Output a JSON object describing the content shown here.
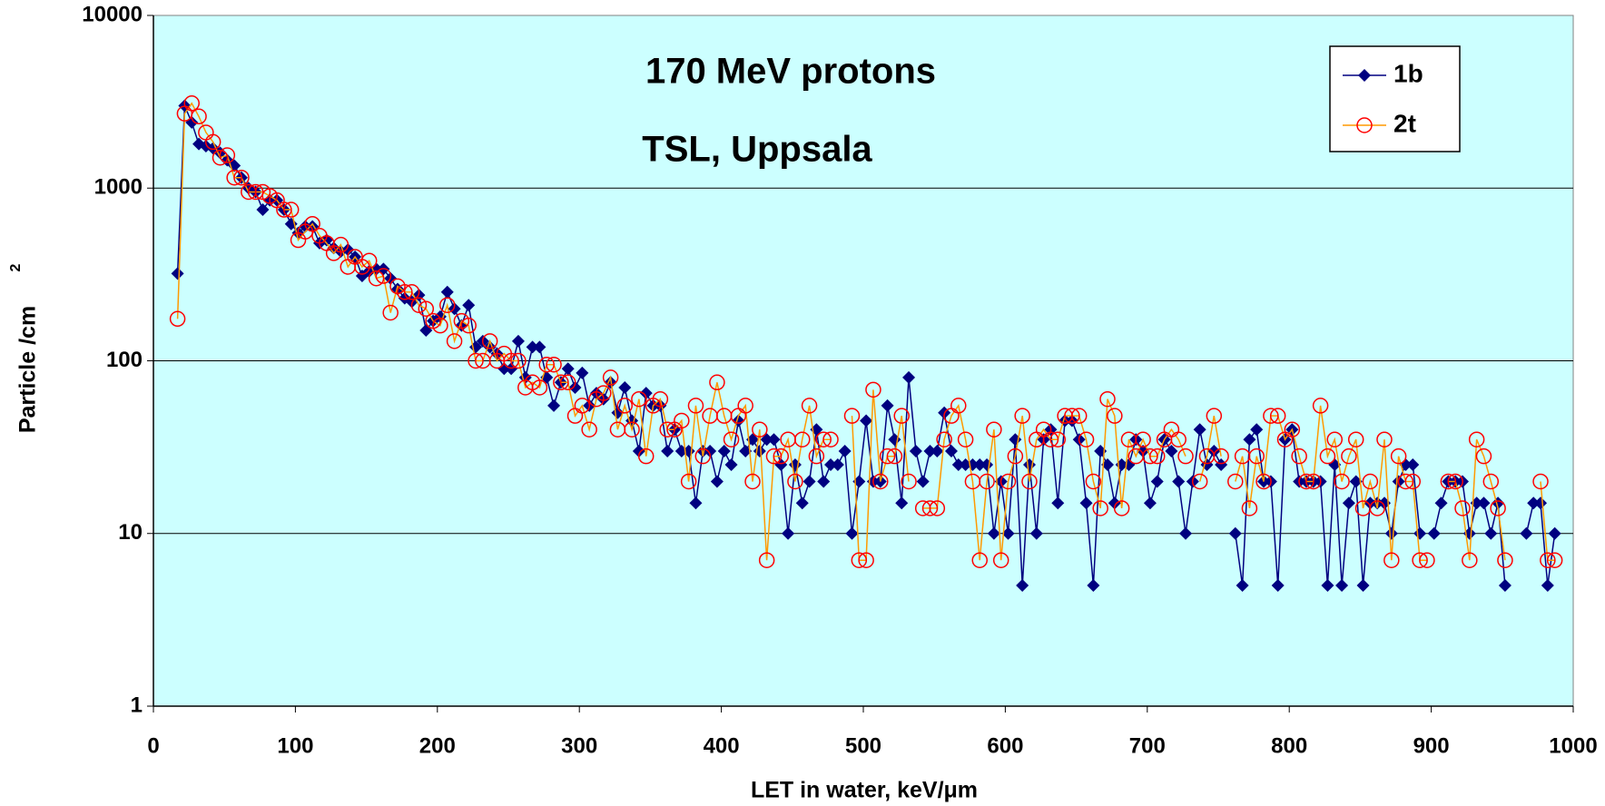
{
  "chart_data": {
    "type": "line",
    "title": "170 MeV protons",
    "subtitle": "TSL, Uppsala",
    "x_label": "LET in water, keV/μm",
    "y_label": "Particle /cm",
    "y_label_superscript": "2",
    "xlim": [
      0,
      1000
    ],
    "xticks": [
      0,
      100,
      200,
      300,
      400,
      500,
      600,
      700,
      800,
      900,
      1000
    ],
    "ylim": [
      1,
      10000
    ],
    "yticks": [
      1,
      10,
      100,
      1000,
      10000
    ],
    "y_scale": "log",
    "grid": true,
    "legend_position": "upper right",
    "background": "#ccffff",
    "x": [
      17,
      22,
      27,
      32,
      37,
      42,
      47,
      52,
      57,
      62,
      67,
      72,
      77,
      82,
      87,
      92,
      97,
      102,
      107,
      112,
      117,
      122,
      127,
      132,
      137,
      142,
      147,
      152,
      157,
      162,
      167,
      172,
      177,
      182,
      187,
      192,
      197,
      202,
      207,
      212,
      217,
      222,
      227,
      232,
      237,
      242,
      247,
      252,
      257,
      262,
      267,
      272,
      277,
      282,
      287,
      292,
      297,
      302,
      307,
      312,
      317,
      322,
      327,
      332,
      337,
      342,
      347,
      352,
      357,
      362,
      367,
      372,
      377,
      382,
      387,
      392,
      397,
      402,
      407,
      412,
      417,
      422,
      427,
      432,
      437,
      442,
      447,
      452,
      457,
      462,
      467,
      472,
      477,
      482,
      487,
      492,
      497,
      502,
      507,
      512,
      517,
      522,
      527,
      532,
      537,
      542,
      547,
      552,
      557,
      562,
      567,
      572,
      577,
      582,
      587,
      592,
      597,
      602,
      607,
      612,
      617,
      622,
      627,
      632,
      637,
      642,
      647,
      652,
      657,
      662,
      667,
      672,
      677,
      682,
      687,
      692,
      697,
      702,
      707,
      712,
      717,
      722,
      727,
      732,
      737,
      742,
      747,
      752,
      757,
      762,
      767,
      772,
      777,
      782,
      787,
      792,
      797,
      802,
      807,
      812,
      817,
      822,
      827,
      832,
      837,
      842,
      847,
      852,
      857,
      862,
      867,
      872,
      877,
      882,
      887,
      892,
      897,
      902,
      907,
      912,
      917,
      922,
      927,
      932,
      937,
      942,
      947,
      952,
      957,
      962,
      967,
      972,
      977,
      982,
      987
    ],
    "series": [
      {
        "name": "1b",
        "color": "#000080",
        "marker": "diamond",
        "values": [
          320,
          3000,
          2400,
          1800,
          1750,
          1700,
          1600,
          1450,
          1350,
          1150,
          1000,
          950,
          750,
          850,
          850,
          750,
          620,
          550,
          600,
          600,
          480,
          500,
          450,
          430,
          440,
          400,
          310,
          330,
          340,
          340,
          300,
          260,
          230,
          220,
          240,
          150,
          170,
          180,
          250,
          200,
          160,
          210,
          120,
          130,
          120,
          110,
          90,
          90,
          130,
          80,
          120,
          120,
          80,
          55,
          75,
          90,
          70,
          85,
          55,
          65,
          60,
          75,
          50,
          70,
          45,
          30,
          65,
          55,
          55,
          30,
          40,
          30,
          30,
          15,
          30,
          30,
          20,
          30,
          25,
          45,
          30,
          35,
          30,
          35,
          35,
          25,
          10,
          25,
          15,
          20,
          40,
          20,
          25,
          25,
          30,
          10,
          20,
          45,
          20,
          20,
          55,
          35,
          15,
          80,
          30,
          20,
          30,
          30,
          50,
          30,
          25,
          25,
          25,
          25,
          25,
          10,
          20,
          10,
          35,
          5,
          25,
          10,
          35,
          40,
          15,
          45,
          45,
          35,
          15,
          5,
          30,
          25,
          15,
          25,
          25,
          35,
          30,
          15,
          20,
          35,
          30,
          20,
          10,
          20,
          40,
          25,
          30,
          25,
          null,
          10,
          5,
          35,
          40,
          20,
          20,
          5,
          35,
          40,
          20,
          20,
          20,
          20,
          5,
          25,
          5,
          15,
          20,
          5,
          15,
          15,
          15,
          10,
          20,
          25,
          25,
          10,
          null,
          10,
          15,
          20,
          20,
          20,
          10,
          15,
          15,
          10,
          15,
          5,
          null,
          null,
          10,
          15,
          15,
          5,
          10
        ]
      },
      {
        "name": "2t",
        "color": "#ff9900",
        "marker_color": "#ff0000",
        "marker": "circle",
        "values": [
          175,
          2700,
          3100,
          2600,
          2100,
          1850,
          1500,
          1550,
          1150,
          1150,
          950,
          950,
          950,
          900,
          850,
          750,
          750,
          500,
          560,
          620,
          530,
          480,
          420,
          470,
          350,
          400,
          350,
          380,
          300,
          310,
          190,
          270,
          250,
          250,
          210,
          200,
          170,
          160,
          210,
          130,
          170,
          160,
          100,
          100,
          130,
          100,
          110,
          100,
          100,
          70,
          75,
          70,
          95,
          95,
          75,
          75,
          48,
          55,
          40,
          60,
          65,
          80,
          40,
          55,
          40,
          60,
          28,
          55,
          60,
          40,
          40,
          45,
          20,
          55,
          28,
          48,
          75,
          48,
          35,
          48,
          55,
          20,
          40,
          7,
          28,
          28,
          35,
          20,
          35,
          55,
          28,
          35,
          35,
          null,
          null,
          48,
          7,
          7,
          68,
          20,
          28,
          28,
          48,
          20,
          null,
          14,
          14,
          14,
          35,
          48,
          55,
          35,
          20,
          7,
          20,
          40,
          7,
          20,
          28,
          48,
          20,
          35,
          40,
          35,
          35,
          48,
          48,
          48,
          35,
          20,
          14,
          60,
          48,
          14,
          35,
          28,
          35,
          28,
          28,
          35,
          40,
          35,
          28,
          null,
          20,
          28,
          48,
          28,
          null,
          20,
          28,
          14,
          28,
          20,
          48,
          48,
          35,
          40,
          28,
          20,
          20,
          55,
          28,
          35,
          20,
          28,
          35,
          14,
          20,
          14,
          35,
          7,
          28,
          20,
          20,
          7,
          7,
          null,
          null,
          20,
          20,
          14,
          7,
          35,
          28,
          20,
          14,
          7,
          null,
          null,
          null,
          null,
          20,
          7,
          7
        ]
      }
    ]
  }
}
